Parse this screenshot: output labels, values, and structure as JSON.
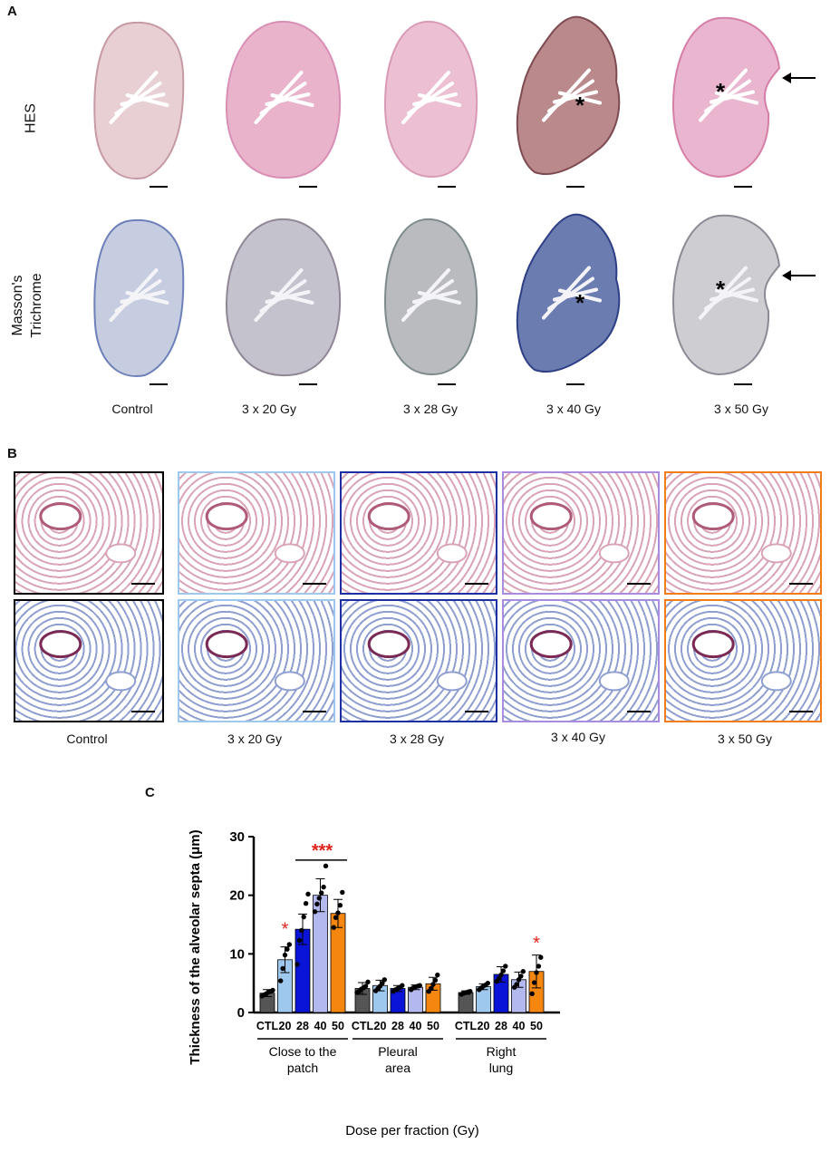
{
  "figure": {
    "panel_a": {
      "letter": "A",
      "rows": [
        "HES",
        "Masson's\nTrichrome"
      ],
      "captions": [
        "Control",
        "3 x 20 Gy",
        "3 x 28 Gy",
        "3 x 40 Gy",
        "3 x 50 Gy"
      ],
      "asterisk": "*"
    },
    "panel_b": {
      "letter": "B",
      "captions": [
        "Control",
        "3 x 20 Gy",
        "3 x 28 Gy",
        "3 x 40 Gy",
        "3 x 50 Gy"
      ],
      "border_colors": [
        "#000000",
        "#9fc8ee",
        "#1c2fa3",
        "#a98be0",
        "#f07d1a"
      ],
      "stain_colors": {
        "hes": "#d9a3b8",
        "masson": "#8f9fd0"
      }
    },
    "panel_c": {
      "letter": "C",
      "stars_patch_20": "*",
      "stars_patch_group": "***",
      "stars_right_50": "*"
    }
  },
  "chart_data": {
    "type": "bar",
    "ylabel": "Thickness of the alveolar septa (μm)",
    "xlabel": "Dose per fraction (Gy)",
    "ylim": [
      0,
      30
    ],
    "yticks": [
      0,
      10,
      20,
      30
    ],
    "tick_labels": [
      "CTL",
      "20",
      "28",
      "40",
      "50"
    ],
    "groups": [
      "Close to the\npatch",
      "Pleural\narea",
      "Right\nlung"
    ],
    "series": [
      {
        "name": "CTL",
        "color": "#555555",
        "values": [
          3.3,
          4.1,
          3.4
        ],
        "errors": [
          0.6,
          1.0,
          0.3
        ]
      },
      {
        "name": "20",
        "color": "#9fc8ee",
        "values": [
          9.0,
          4.6,
          4.4
        ],
        "errors": [
          2.2,
          0.9,
          0.5
        ]
      },
      {
        "name": "28",
        "color": "#0a14d8",
        "values": [
          14.2,
          4.1,
          6.5
        ],
        "errors": [
          2.6,
          0.5,
          1.3
        ]
      },
      {
        "name": "40",
        "color": "#b3b8ee",
        "values": [
          20.0,
          4.3,
          5.6
        ],
        "errors": [
          2.8,
          0.4,
          1.3
        ]
      },
      {
        "name": "50",
        "color": "#f5860f",
        "values": [
          16.9,
          4.9,
          7.0
        ],
        "errors": [
          2.4,
          1.1,
          2.8
        ]
      }
    ],
    "points": [
      [
        [
          2.8,
          3.0,
          3.2,
          3.5,
          3.6,
          3.8
        ],
        [
          3.4,
          3.6,
          4.0,
          4.2,
          4.5,
          5.2
        ],
        [
          3.1,
          3.3,
          3.4,
          3.5,
          3.6
        ]
      ],
      [
        [
          5.4,
          7.5,
          9.8,
          10.8,
          11.6
        ],
        [
          3.7,
          4.1,
          4.5,
          5.0,
          5.6
        ],
        [
          3.9,
          4.2,
          4.5,
          4.7,
          5.0
        ]
      ],
      [
        [
          8.2,
          12.3,
          14.0,
          16.3,
          18.6,
          20.2
        ],
        [
          3.6,
          3.9,
          4.1,
          4.3,
          4.6
        ],
        [
          5.3,
          5.8,
          6.4,
          7.1,
          7.9
        ]
      ],
      [
        [
          17.2,
          18.5,
          19.5,
          20.4,
          21.4,
          25.0
        ],
        [
          3.9,
          4.2,
          4.4,
          4.5,
          4.6
        ],
        [
          4.3,
          4.8,
          5.6,
          6.2,
          7.0
        ]
      ],
      [
        [
          14.5,
          16.2,
          17.0,
          18.3,
          20.5
        ],
        [
          3.6,
          4.1,
          4.8,
          5.5,
          6.4
        ],
        [
          3.2,
          5.1,
          6.8,
          7.9,
          9.4
        ]
      ]
    ]
  }
}
